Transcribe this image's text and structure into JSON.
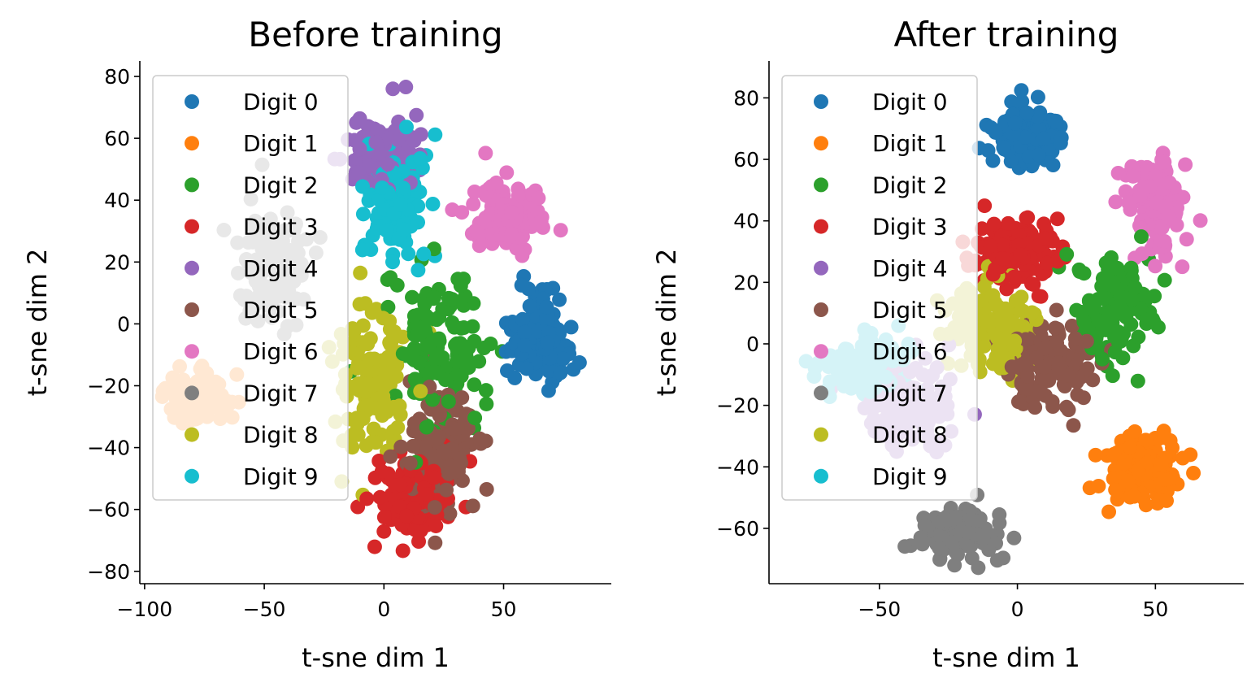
{
  "chart_data": [
    {
      "type": "scatter",
      "title": "Before training",
      "xlabel": "t-sne dim 1",
      "ylabel": "t-sne dim 2",
      "xlim": [
        -102,
        95
      ],
      "ylim": [
        -84,
        85
      ],
      "xticks": [
        -100,
        -50,
        0,
        50
      ],
      "yticks": [
        -80,
        -60,
        -40,
        -20,
        0,
        20,
        40,
        60,
        80
      ],
      "legend_position": "upper-left",
      "grid": false,
      "series": [
        {
          "name": "Digit 0",
          "color": "#1f77b4",
          "cluster": {
            "center": [
              65,
              -5
            ],
            "spread": [
              12,
              14
            ]
          }
        },
        {
          "name": "Digit 1",
          "color": "#ff7f0e",
          "cluster": {
            "center": [
              -78,
              -24
            ],
            "spread": [
              12,
              7
            ]
          }
        },
        {
          "name": "Digit 2",
          "color": "#2ca02c",
          "cluster": {
            "center": [
              22,
              -8
            ],
            "spread": [
              18,
              22
            ]
          }
        },
        {
          "name": "Digit 3",
          "color": "#d62728",
          "cluster": {
            "center": [
              12,
              -55
            ],
            "spread": [
              14,
              12
            ]
          }
        },
        {
          "name": "Digit 4",
          "color": "#9467bd",
          "cluster": {
            "center": [
              0,
              55
            ],
            "spread": [
              14,
              10
            ]
          }
        },
        {
          "name": "Digit 5",
          "color": "#8c564b",
          "cluster": {
            "center": [
              25,
              -40
            ],
            "spread": [
              14,
              18
            ]
          }
        },
        {
          "name": "Digit 6",
          "color": "#e377c2",
          "cluster": {
            "center": [
              50,
              36
            ],
            "spread": [
              14,
              10
            ]
          }
        },
        {
          "name": "Digit 7",
          "color": "#7f7f7f",
          "cluster": {
            "center": [
              -45,
              20
            ],
            "spread": [
              14,
              18
            ]
          }
        },
        {
          "name": "Digit 8",
          "color": "#bcbd22",
          "cluster": {
            "center": [
              -5,
              -20
            ],
            "spread": [
              14,
              22
            ]
          }
        },
        {
          "name": "Digit 9",
          "color": "#17becf",
          "cluster": {
            "center": [
              5,
              40
            ],
            "spread": [
              12,
              16
            ]
          }
        }
      ]
    },
    {
      "type": "scatter",
      "title": "After training",
      "xlabel": "t-sne dim 1",
      "ylabel": "t-sne dim 2",
      "xlim": [
        -90,
        82
      ],
      "ylim": [
        -78,
        92
      ],
      "xticks": [
        -50,
        0,
        50
      ],
      "yticks": [
        -60,
        -40,
        -20,
        0,
        20,
        40,
        60,
        80
      ],
      "legend_position": "upper-left",
      "grid": false,
      "series": [
        {
          "name": "Digit 0",
          "color": "#1f77b4",
          "cluster": {
            "center": [
              3,
              68
            ],
            "spread": [
              12,
              9
            ]
          }
        },
        {
          "name": "Digit 1",
          "color": "#ff7f0e",
          "cluster": {
            "center": [
              45,
              -40
            ],
            "spread": [
              12,
              10
            ]
          }
        },
        {
          "name": "Digit 2",
          "color": "#2ca02c",
          "cluster": {
            "center": [
              35,
              12
            ],
            "spread": [
              12,
              14
            ]
          }
        },
        {
          "name": "Digit 3",
          "color": "#d62728",
          "cluster": {
            "center": [
              0,
              30
            ],
            "spread": [
              14,
              10
            ]
          }
        },
        {
          "name": "Digit 4",
          "color": "#9467bd",
          "cluster": {
            "center": [
              -40,
              -20
            ],
            "spread": [
              14,
              14
            ]
          }
        },
        {
          "name": "Digit 5",
          "color": "#8c564b",
          "cluster": {
            "center": [
              10,
              -5
            ],
            "spread": [
              13,
              14
            ]
          }
        },
        {
          "name": "Digit 6",
          "color": "#e377c2",
          "cluster": {
            "center": [
              50,
              45
            ],
            "spread": [
              10,
              14
            ]
          }
        },
        {
          "name": "Digit 7",
          "color": "#7f7f7f",
          "cluster": {
            "center": [
              -20,
              -62
            ],
            "spread": [
              14,
              7
            ]
          }
        },
        {
          "name": "Digit 8",
          "color": "#bcbd22",
          "cluster": {
            "center": [
              -10,
              5
            ],
            "spread": [
              14,
              14
            ]
          }
        },
        {
          "name": "Digit 9",
          "color": "#17becf",
          "cluster": {
            "center": [
              -55,
              -8
            ],
            "spread": [
              14,
              10
            ]
          }
        }
      ]
    }
  ]
}
